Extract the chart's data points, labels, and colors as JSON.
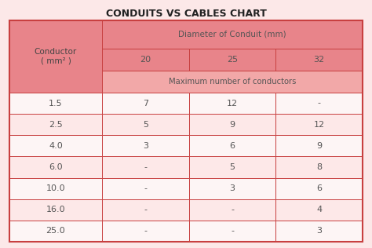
{
  "title": "CONDUITS VS CABLES CHART",
  "col0_label": "Conductor\n( mm² )",
  "col_span_label": "Diameter of Conduit (mm)",
  "sub_span_label": "Maximum number of conductors",
  "col_headers": [
    "20",
    "25",
    "32"
  ],
  "row_labels": [
    "1.5",
    "2.5",
    "4.0",
    "6.0",
    "10.0",
    "16.0",
    "25.0"
  ],
  "table_data": [
    [
      "7",
      "12",
      "-"
    ],
    [
      "5",
      "9",
      "12"
    ],
    [
      "3",
      "6",
      "9"
    ],
    [
      "-",
      "5",
      "8"
    ],
    [
      "-",
      "3",
      "6"
    ],
    [
      "-",
      "-",
      "4"
    ],
    [
      "-",
      "-",
      "3"
    ]
  ],
  "bg_color": "#fce8e8",
  "header_main_color": "#e8848a",
  "header_sub_color": "#f2a8a8",
  "row_light_color": "#fde8e8",
  "row_white_color": "#fdf5f5",
  "border_color": "#c84040",
  "title_color": "#222222",
  "header_text_color": "#555555",
  "data_text_color": "#555555",
  "col0_text_color": "#444444"
}
